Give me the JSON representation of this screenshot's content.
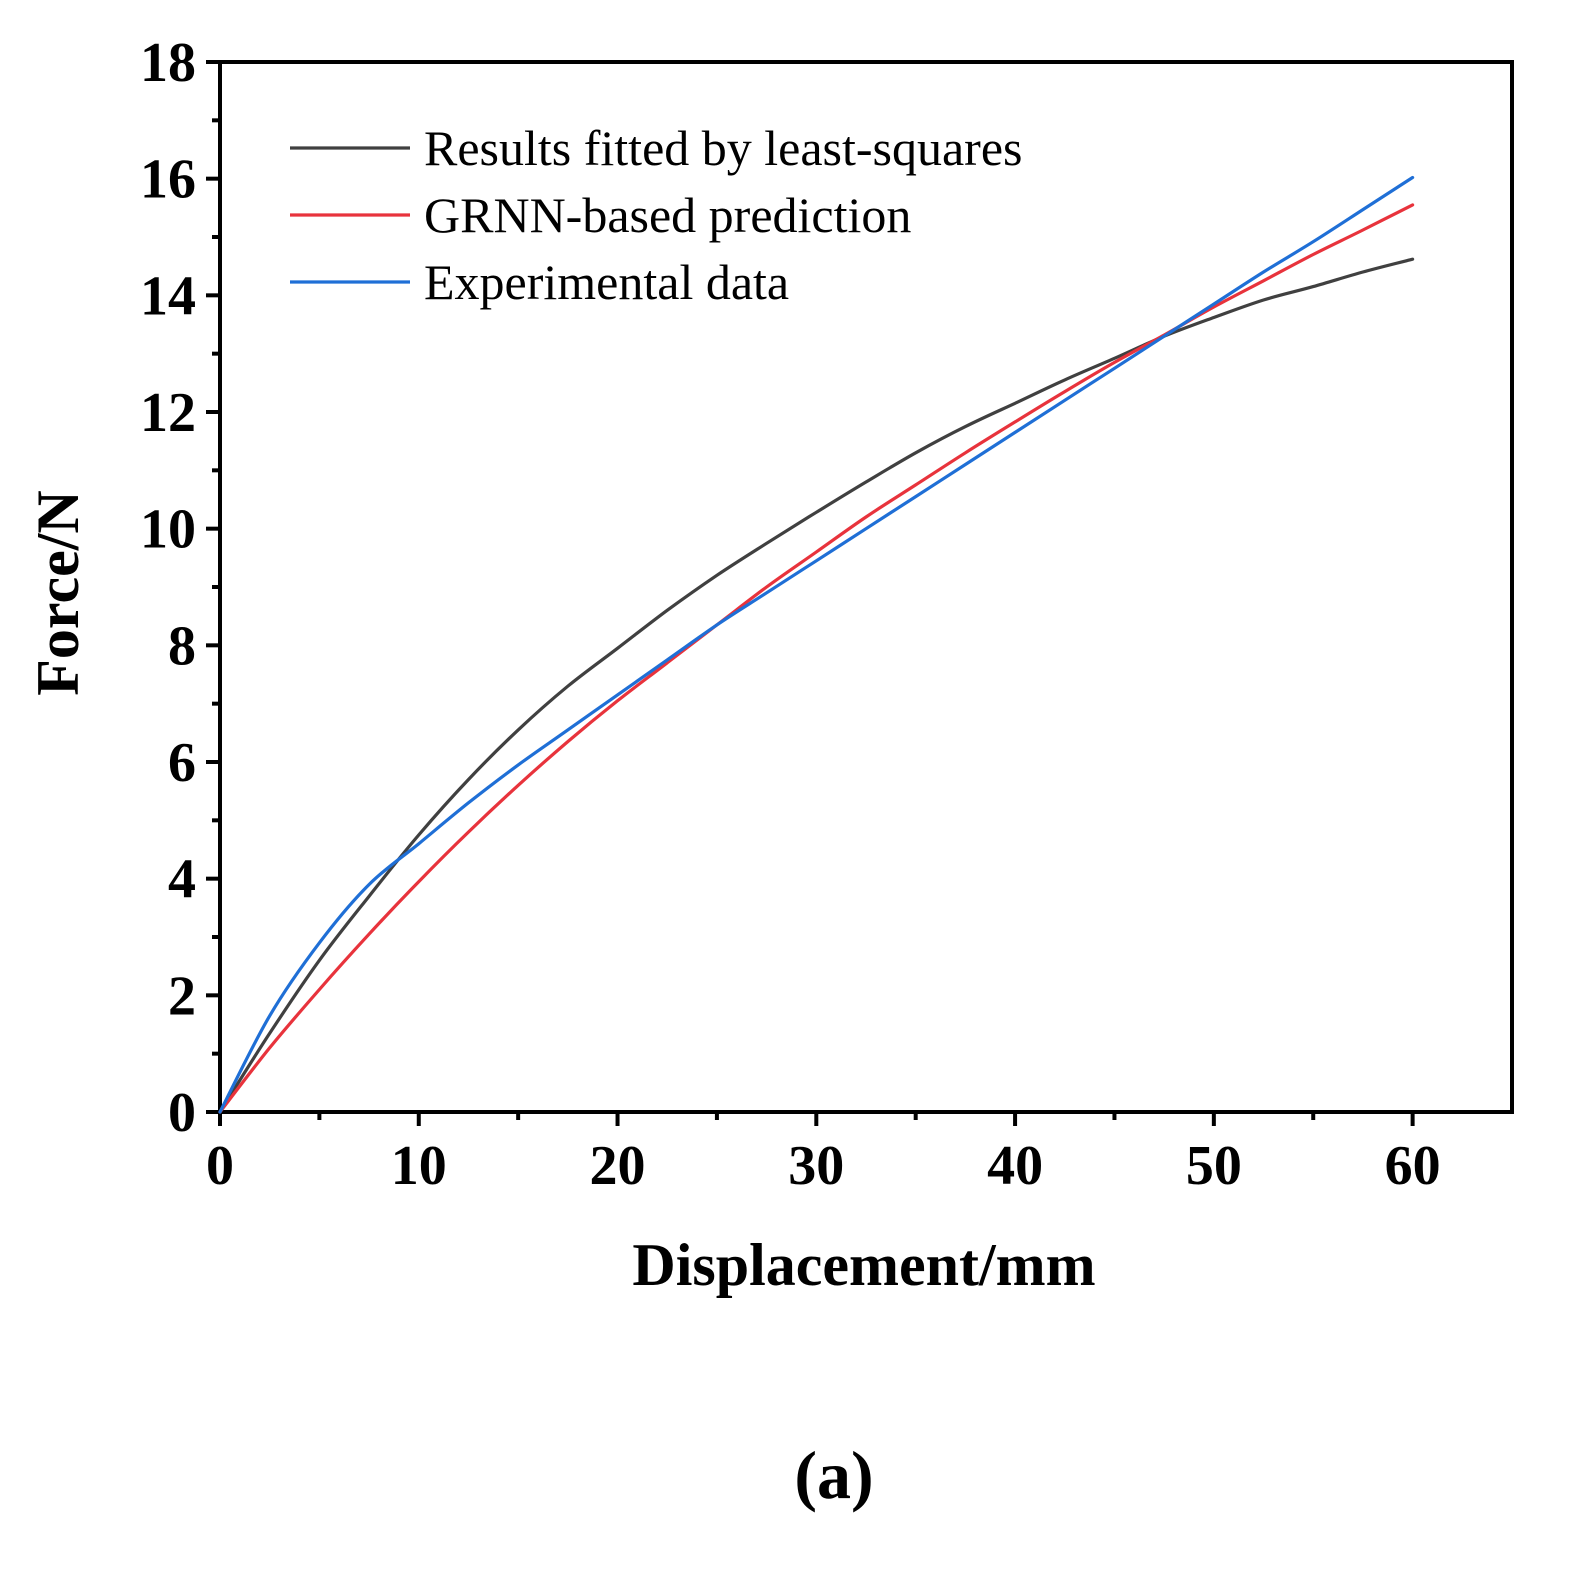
{
  "chart_data": {
    "type": "line",
    "title": "",
    "xlabel": "Displacement/mm",
    "ylabel": "Force/N",
    "xlim": [
      0,
      65
    ],
    "ylim": [
      0,
      18
    ],
    "x_ticks": [
      0,
      10,
      20,
      30,
      40,
      50,
      60
    ],
    "x_minor_ticks": [
      5,
      15,
      25,
      35,
      45,
      55
    ],
    "y_ticks": [
      0,
      2,
      4,
      6,
      8,
      10,
      12,
      14,
      16,
      18
    ],
    "grid": false,
    "legend_position": "top-left",
    "caption": "(a)",
    "series": [
      {
        "name": "Results fitted by least-squares",
        "color": "#404040",
        "x": [
          0,
          2.5,
          5,
          7.5,
          10,
          12.5,
          15,
          17.5,
          20,
          22.5,
          25,
          27.5,
          30,
          32.5,
          35,
          37.5,
          40,
          42.5,
          45,
          47.5,
          50,
          52.5,
          55,
          57.5,
          60
        ],
        "y": [
          0,
          1.35,
          2.6,
          3.7,
          4.75,
          5.7,
          6.55,
          7.3,
          7.95,
          8.6,
          9.2,
          9.75,
          10.28,
          10.8,
          11.3,
          11.75,
          12.15,
          12.55,
          12.92,
          13.3,
          13.62,
          13.92,
          14.15,
          14.4,
          14.62
        ]
      },
      {
        "name": "GRNN-based prediction",
        "color": "#e8333c",
        "x": [
          0,
          2.5,
          5,
          7.5,
          10,
          12.5,
          15,
          17.5,
          20,
          22.5,
          25,
          27.5,
          30,
          32.5,
          35,
          37.5,
          40,
          42.5,
          45,
          47.5,
          50,
          52.5,
          55,
          57.5,
          60
        ],
        "y": [
          0,
          1.1,
          2.1,
          3.05,
          3.95,
          4.8,
          5.6,
          6.35,
          7.05,
          7.7,
          8.35,
          9.0,
          9.6,
          10.2,
          10.75,
          11.3,
          11.83,
          12.35,
          12.85,
          13.32,
          13.8,
          14.25,
          14.7,
          15.12,
          15.55
        ]
      },
      {
        "name": "Experimental data",
        "color": "#1f6fd6",
        "x": [
          0,
          2.5,
          5,
          7.5,
          10,
          12.5,
          15,
          17.5,
          20,
          22.5,
          25,
          27.5,
          30,
          32.5,
          35,
          37.5,
          40,
          42.5,
          45,
          47.5,
          50,
          52.5,
          55,
          57.5,
          60
        ],
        "y": [
          0,
          1.65,
          2.9,
          3.9,
          4.6,
          5.3,
          5.95,
          6.55,
          7.15,
          7.75,
          8.35,
          8.9,
          9.45,
          10.0,
          10.55,
          11.1,
          11.65,
          12.2,
          12.75,
          13.3,
          13.85,
          14.4,
          14.92,
          15.47,
          16.02
        ]
      }
    ]
  }
}
